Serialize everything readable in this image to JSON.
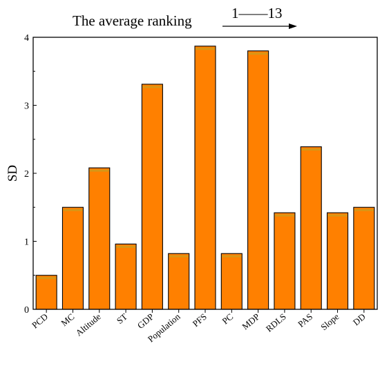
{
  "chart_data": {
    "type": "bar",
    "title": "The average ranking",
    "annotation": "1——13",
    "xlabel": "",
    "ylabel": "SD",
    "ylim": [
      0,
      4
    ],
    "yticks": [
      "0",
      "1",
      "2",
      "3",
      "4"
    ],
    "categories": [
      "PCD",
      "MC",
      "Altitude",
      "ST",
      "GDP",
      "Population",
      "PFS",
      "PC",
      "MDP",
      "RDLS",
      "PAS",
      "Slope",
      "DD"
    ],
    "values": [
      0.5,
      1.5,
      2.08,
      0.96,
      3.31,
      0.82,
      3.87,
      0.82,
      3.8,
      1.42,
      2.39,
      1.42,
      1.5
    ],
    "grid": false,
    "legend": "none",
    "colors": {
      "bar_fill": "#ff8000",
      "bar_stroke": "#000000",
      "bar_highlight": "#c8a020"
    }
  }
}
